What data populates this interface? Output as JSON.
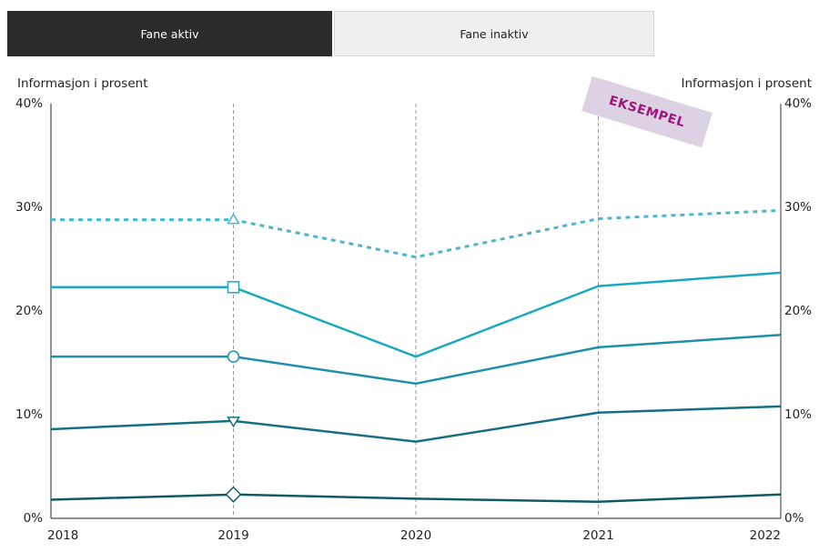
{
  "tabs": [
    {
      "label": "Fane aktiv",
      "active": true
    },
    {
      "label": "Fane inaktiv",
      "active": false
    }
  ],
  "stamp": "EKSEMPEL",
  "colors": {
    "tab_active_bg": "#2b2b2b",
    "tab_inactive_bg": "#efefef",
    "stamp_bg": "#ddd2e4",
    "stamp_text": "#a0167c",
    "grid": "#9a9a9a"
  },
  "chart_data": {
    "type": "line",
    "title": "",
    "ylabel_left": "Informasjon i prosent",
    "ylabel_right": "Informasjon i prosent",
    "x": [
      "2018",
      "2019",
      "2020",
      "2021",
      "2022"
    ],
    "ylim": [
      0,
      40
    ],
    "yticks": [
      0,
      10,
      20,
      30,
      40
    ],
    "ytick_labels": [
      "0%",
      "10%",
      "20%",
      "30%",
      "40%"
    ],
    "grid": "vertical dashed lines at each year",
    "legend": "none",
    "series": [
      {
        "values": [
          28.8,
          28.8,
          25.2,
          28.9,
          29.7
        ],
        "color": "#49b8cf",
        "dashed": true,
        "marker": "triangle",
        "marker_at": "2019"
      },
      {
        "values": [
          22.3,
          22.3,
          15.6,
          22.4,
          23.7
        ],
        "color": "#1aa8c0",
        "dashed": false,
        "marker": "square",
        "marker_at": "2019"
      },
      {
        "values": [
          15.6,
          15.6,
          13.0,
          16.5,
          17.7
        ],
        "color": "#2090aa",
        "dashed": false,
        "marker": "circle",
        "marker_at": "2019"
      },
      {
        "values": [
          8.6,
          9.4,
          7.4,
          10.2,
          10.8
        ],
        "color": "#176f85",
        "dashed": false,
        "marker": "triangle-down",
        "marker_at": "2019"
      },
      {
        "values": [
          1.8,
          2.3,
          1.9,
          1.6,
          2.3
        ],
        "color": "#0f5a65",
        "dashed": false,
        "marker": "diamond",
        "marker_at": "2019"
      }
    ]
  }
}
